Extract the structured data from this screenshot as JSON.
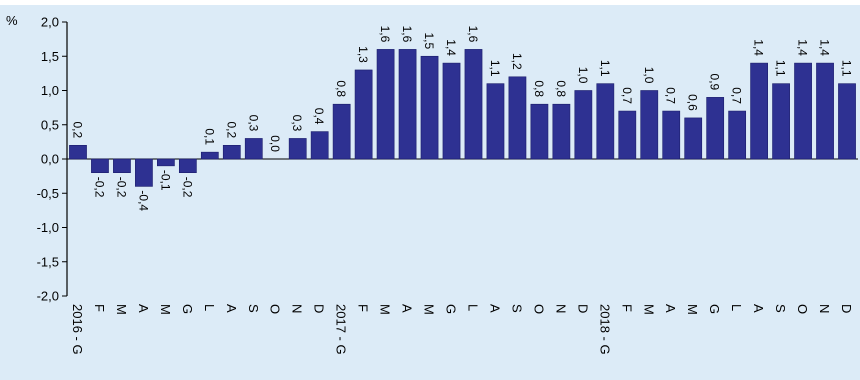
{
  "chart_data": {
    "type": "bar",
    "y_unit": "%",
    "ylim": [
      -2.0,
      2.0
    ],
    "y_ticks": [
      "2,0",
      "1,5",
      "1,0",
      "0,5",
      "0,0",
      "-0,5",
      "-1,0",
      "-1,5",
      "-2,0"
    ],
    "bar_color": "#2e3192",
    "background": "#dcebf7",
    "grid": false,
    "categories": [
      "2016 - G",
      "F",
      "M",
      "A",
      "M",
      "G",
      "L",
      "A",
      "S",
      "O",
      "N",
      "D",
      "2017 - G",
      "F",
      "M",
      "A",
      "M",
      "G",
      "L",
      "A",
      "S",
      "O",
      "N",
      "D",
      "2018 - G",
      "F",
      "M",
      "A",
      "M",
      "G",
      "L",
      "A",
      "S",
      "O",
      "N",
      "D"
    ],
    "values": [
      0.2,
      -0.2,
      -0.2,
      -0.4,
      -0.1,
      -0.2,
      0.1,
      0.2,
      0.3,
      0.0,
      0.3,
      0.4,
      0.8,
      1.3,
      1.6,
      1.6,
      1.5,
      1.4,
      1.6,
      1.1,
      1.2,
      0.8,
      0.8,
      1.0,
      1.1,
      0.7,
      1.0,
      0.7,
      0.6,
      0.9,
      0.7,
      1.4,
      1.1,
      1.4,
      1.4,
      1.1
    ],
    "value_labels": [
      "0,2",
      "-0,2",
      "-0,2",
      "-0,4",
      "-0,1",
      "-0,2",
      "0,1",
      "0,2",
      "0,3",
      "0,0",
      "0,3",
      "0,4",
      "0,8",
      "1,3",
      "1,6",
      "1,6",
      "1,5",
      "1,4",
      "1,6",
      "1,1",
      "1,2",
      "0,8",
      "0,8",
      "1,0",
      "1,1",
      "0,7",
      "1,0",
      "0,7",
      "0,6",
      "0,9",
      "0,7",
      "1,4",
      "1,1",
      "1,4",
      "1,4",
      "1,1"
    ]
  }
}
